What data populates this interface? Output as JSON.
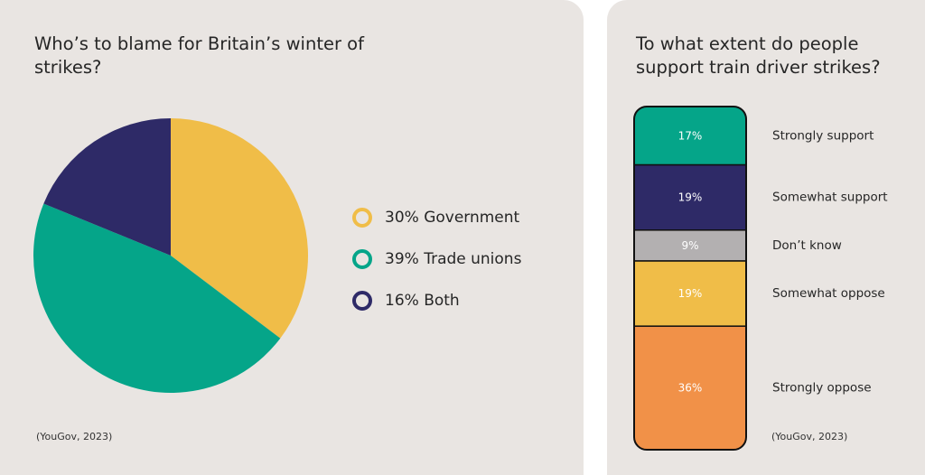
{
  "colors": {
    "yellow": "#f0bd48",
    "teal": "#05a589",
    "navy": "#2e2a67",
    "gray": "#b3b0b1",
    "orange": "#f19148"
  },
  "left": {
    "title": "Who’s to blame for Britain’s winter of strikes?",
    "source": "(YouGov, 2023)",
    "legend": [
      {
        "label": "30% Government",
        "color": "#f0bd48"
      },
      {
        "label": "39% Trade unions",
        "color": "#05a589"
      },
      {
        "label": "16% Both",
        "color": "#2e2a67"
      }
    ]
  },
  "right": {
    "title": "To what extent do people support train driver strikes?",
    "source": "(YouGov, 2023)"
  },
  "chart_data": [
    {
      "type": "pie",
      "title": "Who’s to blame for Britain’s winter of strikes?",
      "categories": [
        "Government",
        "Trade unions",
        "Both"
      ],
      "values": [
        30,
        39,
        16
      ],
      "colors": [
        "#f0bd48",
        "#05a589",
        "#2e2a67"
      ]
    },
    {
      "type": "bar",
      "subtype": "stacked-100",
      "title": "To what extent do people support train driver strikes?",
      "categories": [
        "Strongly support",
        "Somewhat support",
        "Don’t know",
        "Somewhat oppose",
        "Strongly oppose"
      ],
      "values": [
        17,
        19,
        9,
        19,
        36
      ],
      "value_labels": [
        "17%",
        "19%",
        "9%",
        "19%",
        "36%"
      ],
      "colors": [
        "#05a589",
        "#2e2a67",
        "#b3b0b1",
        "#f0bd48",
        "#f19148"
      ],
      "label_colors": [
        "#ffffff",
        "#ffffff",
        "#ffffff",
        "#ffffff",
        "#ffffff"
      ]
    }
  ]
}
